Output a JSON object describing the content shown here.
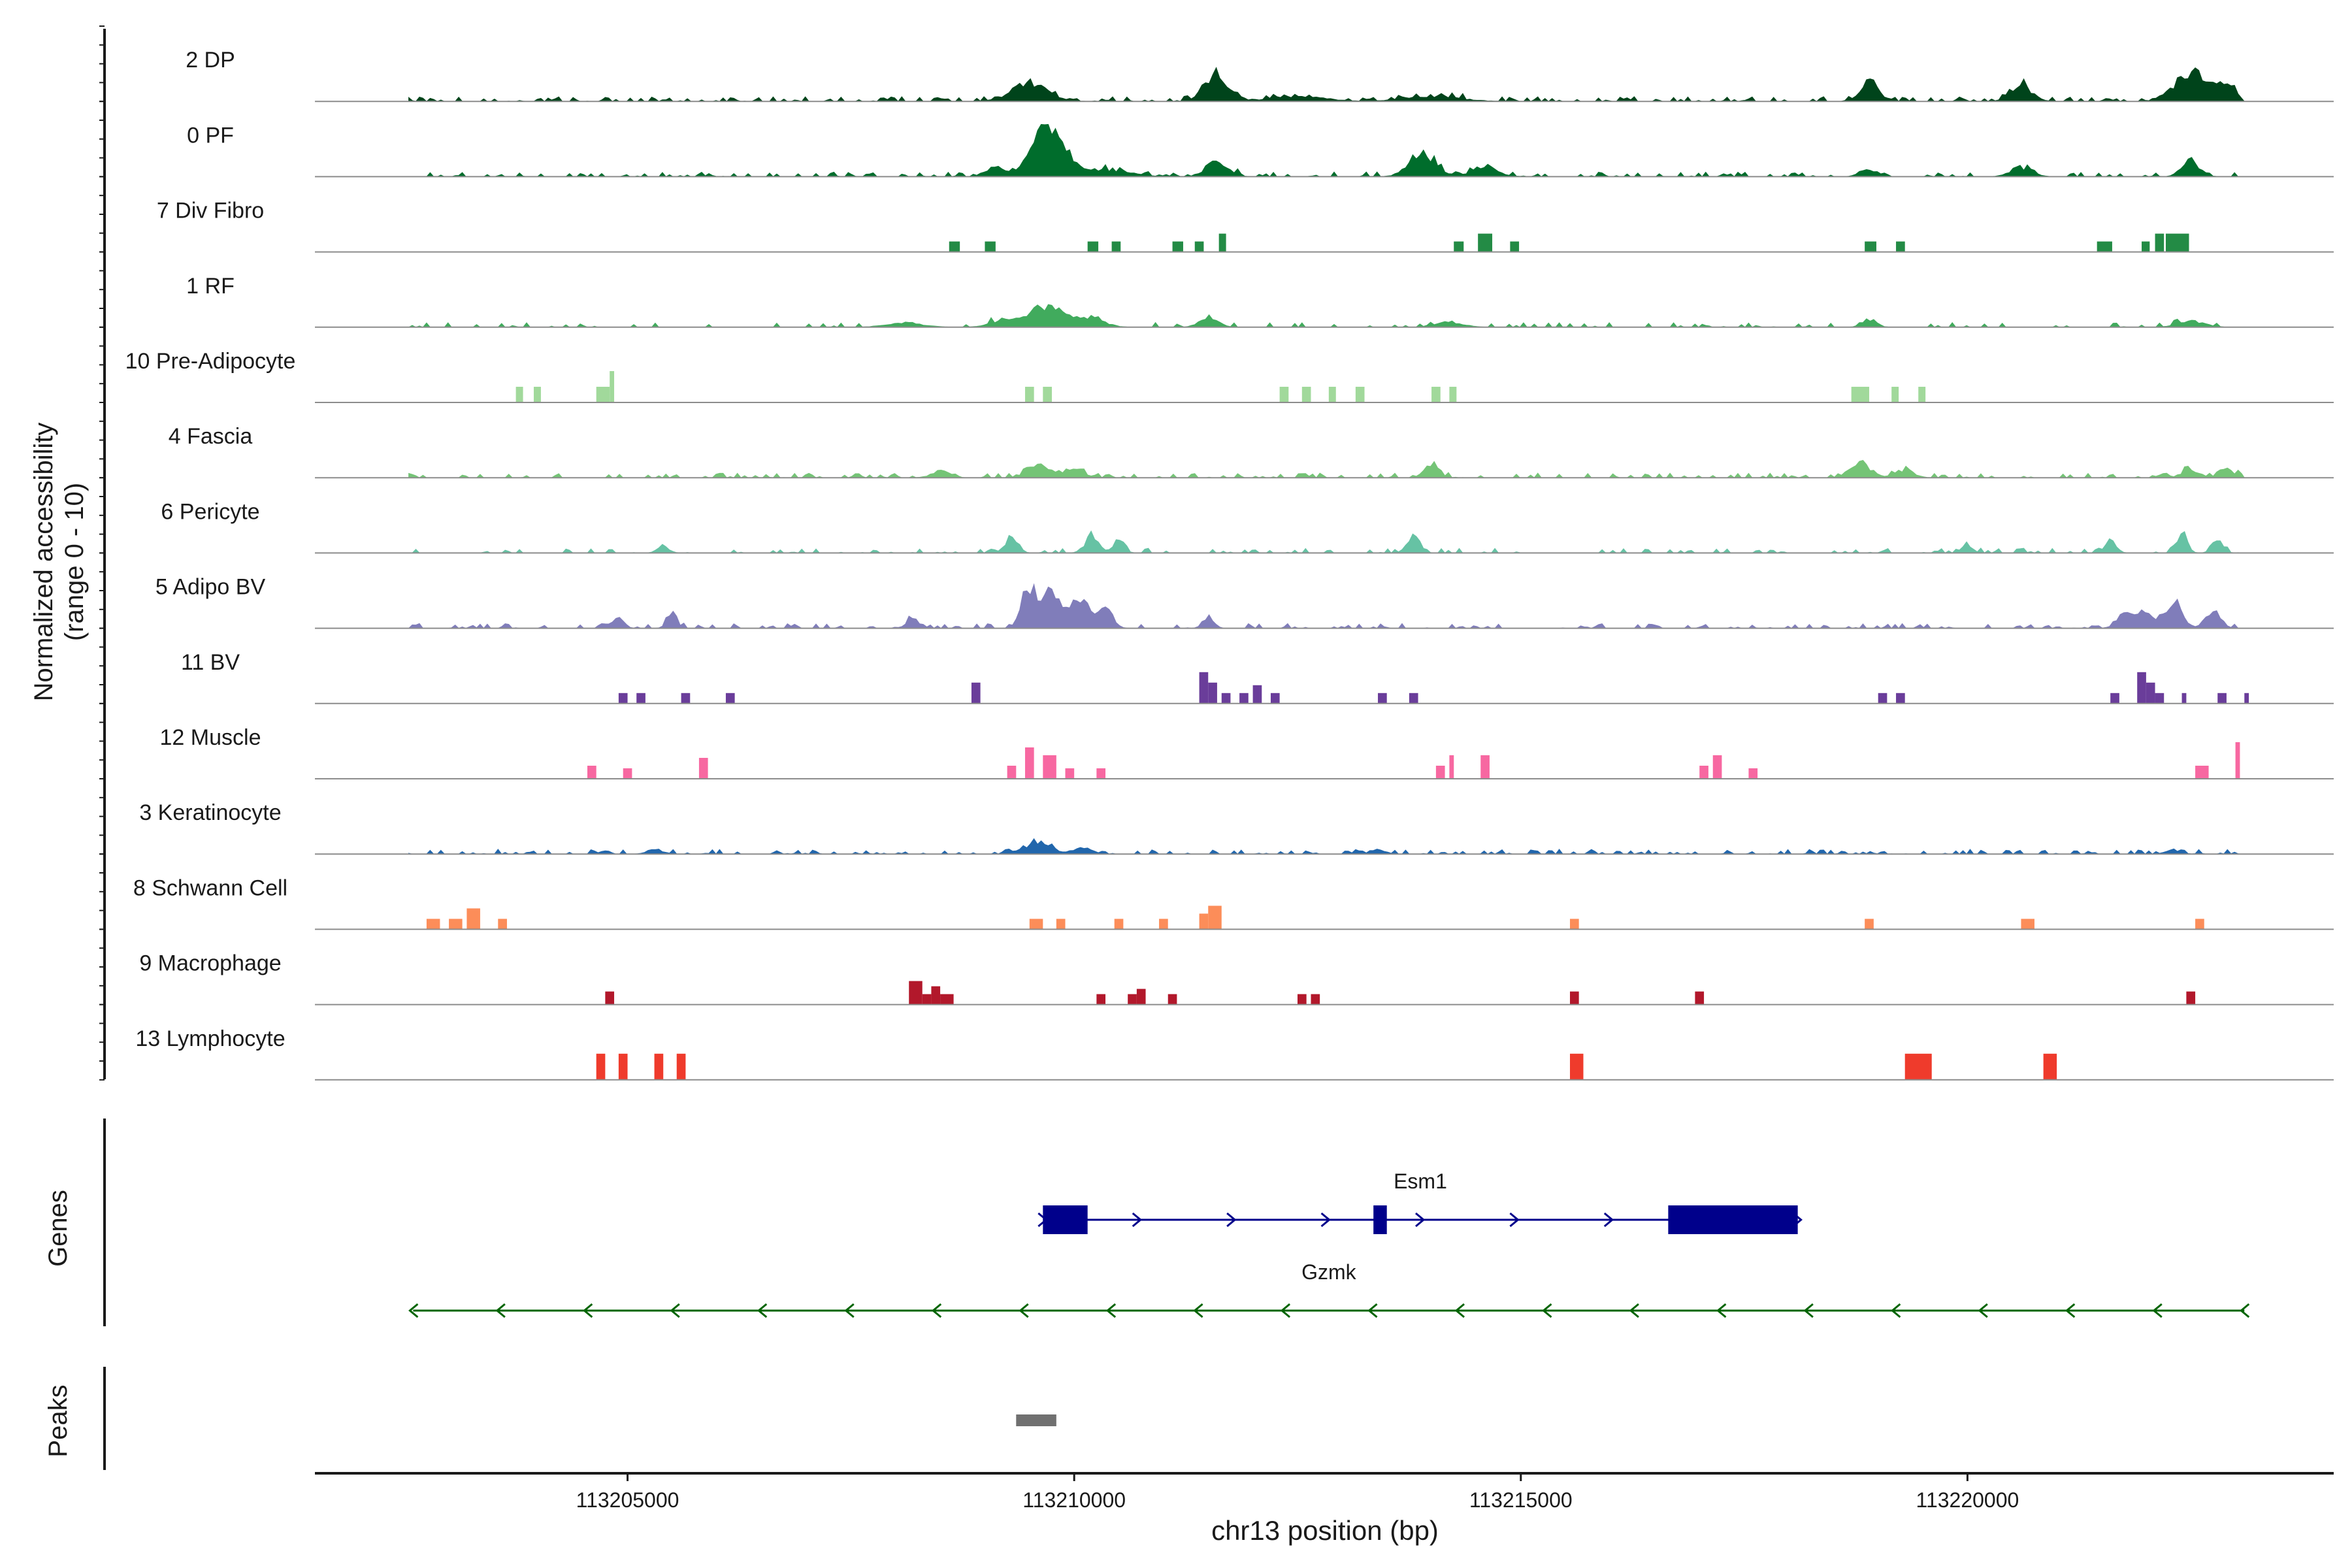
{
  "chart_data": {
    "type": "area",
    "title": "",
    "xlabel": "chr13 position (bp)",
    "ylabel_line1": "Normalized accessibility",
    "ylabel_line2": "(range 0 - 10)",
    "xlim": [
      113201500,
      113224100
    ],
    "ylim": [
      0,
      10
    ],
    "x_ticks": [
      113205000,
      113210000,
      113215000,
      113220000
    ],
    "x_tick_labels": [
      "113205000",
      "113210000",
      "113215000",
      "113220000"
    ],
    "panel_labels": {
      "genes": "Genes",
      "peaks": "Peaks"
    },
    "tracks": [
      {
        "name": "2 DP",
        "color": "#00441b",
        "density": 0.9,
        "peaks": [
          [
            113209500,
            3.5,
            200
          ],
          [
            113211600,
            5.0,
            130
          ],
          [
            113218900,
            3.8,
            100
          ],
          [
            113220600,
            3.0,
            120
          ],
          [
            113222500,
            5.5,
            180
          ],
          [
            113222900,
            3.0,
            100
          ],
          [
            113212500,
            1.0,
            300
          ],
          [
            113214000,
            1.0,
            300
          ]
        ]
      },
      {
        "name": "0 PF",
        "color": "#006d2c",
        "density": 0.8,
        "peaks": [
          [
            113209700,
            10.0,
            180
          ],
          [
            113209100,
            1.8,
            100
          ],
          [
            113211600,
            3.2,
            120
          ],
          [
            113213900,
            4.2,
            150
          ],
          [
            113214600,
            1.5,
            150
          ],
          [
            113218900,
            1.2,
            100
          ],
          [
            113220600,
            1.5,
            120
          ],
          [
            113222500,
            3.0,
            100
          ],
          [
            113210300,
            1.2,
            300
          ]
        ]
      },
      {
        "name": "7 Div Fibro",
        "color": "#238b45",
        "blocks": [
          [
            113208600,
            113208720,
            2
          ],
          [
            113209000,
            113209120,
            2
          ],
          [
            113210150,
            113210270,
            2
          ],
          [
            113210420,
            113210520,
            2
          ],
          [
            113211100,
            113211220,
            2
          ],
          [
            113211350,
            113211450,
            2
          ],
          [
            113211620,
            113211700,
            3.5
          ],
          [
            113214250,
            113214360,
            2
          ],
          [
            113214520,
            113214680,
            3.5
          ],
          [
            113214880,
            113214980,
            2
          ],
          [
            113218850,
            113218980,
            2
          ],
          [
            113219200,
            113219300,
            2
          ],
          [
            113221450,
            113221620,
            2
          ],
          [
            113221950,
            113222040,
            2
          ],
          [
            113222100,
            113222200,
            3.5
          ],
          [
            113222220,
            113222480,
            3.5
          ]
        ]
      },
      {
        "name": "1 RF",
        "color": "#41ab5d",
        "density": 0.5,
        "peaks": [
          [
            113209700,
            4.2,
            200
          ],
          [
            113209200,
            1.2,
            150
          ],
          [
            113210200,
            1.5,
            150
          ],
          [
            113211500,
            2.0,
            100
          ],
          [
            113214200,
            1.0,
            150
          ],
          [
            113218900,
            1.5,
            80
          ],
          [
            113222500,
            1.2,
            150
          ],
          [
            113208100,
            0.8,
            200
          ]
        ]
      },
      {
        "name": "10 Pre-Adipocyte",
        "color": "#a1d99b",
        "blocks": [
          [
            113203750,
            113203830,
            3
          ],
          [
            113203950,
            113204030,
            3
          ],
          [
            113204650,
            113204800,
            3
          ],
          [
            113204800,
            113204850,
            6
          ],
          [
            113209450,
            113209550,
            3
          ],
          [
            113209650,
            113209750,
            3
          ],
          [
            113212300,
            113212400,
            3
          ],
          [
            113212550,
            113212650,
            3
          ],
          [
            113212850,
            113212930,
            3
          ],
          [
            113213150,
            113213250,
            3
          ],
          [
            113214000,
            113214100,
            3
          ],
          [
            113214200,
            113214280,
            3
          ],
          [
            113218700,
            113218900,
            3
          ],
          [
            113219150,
            113219230,
            3
          ],
          [
            113219450,
            113219530,
            3
          ]
        ]
      },
      {
        "name": "4 Fascia",
        "color": "#74c476",
        "density": 0.7,
        "peaks": [
          [
            113209600,
            2.5,
            120
          ],
          [
            113210000,
            1.5,
            120
          ],
          [
            113214000,
            2.2,
            80
          ],
          [
            113218800,
            2.5,
            120
          ],
          [
            113219300,
            1.5,
            100
          ],
          [
            113222500,
            1.5,
            100
          ],
          [
            113222900,
            1.8,
            80
          ],
          [
            113208500,
            1.2,
            100
          ]
        ]
      },
      {
        "name": "6 Pericyte",
        "color": "#66c2a4",
        "density": 0.6,
        "peaks": [
          [
            113209300,
            3.0,
            70
          ],
          [
            113210200,
            3.0,
            80
          ],
          [
            113210500,
            2.5,
            60
          ],
          [
            113213800,
            3.5,
            70
          ],
          [
            113222400,
            3.8,
            60
          ],
          [
            113222800,
            2.2,
            60
          ],
          [
            113221600,
            2.5,
            60
          ],
          [
            113220000,
            1.5,
            60
          ],
          [
            113205400,
            1.5,
            60
          ]
        ]
      },
      {
        "name": "5 Adipo BV",
        "color": "#807dba",
        "density": 0.7,
        "peaks": [
          [
            113209500,
            7.5,
            90
          ],
          [
            113209750,
            6.8,
            90
          ],
          [
            113210050,
            5.5,
            110
          ],
          [
            113210350,
            4.0,
            80
          ],
          [
            113222300,
            4.5,
            100
          ],
          [
            113221800,
            3.0,
            100
          ],
          [
            113222750,
            3.5,
            80
          ],
          [
            113222000,
            2.5,
            80
          ],
          [
            113204900,
            2.0,
            60
          ],
          [
            113205500,
            2.2,
            60
          ],
          [
            113208200,
            1.6,
            80
          ],
          [
            113211500,
            2.2,
            60
          ]
        ]
      },
      {
        "name": "11 BV",
        "color": "#6a3d9a",
        "blocks": [
          [
            113204900,
            113205000,
            2
          ],
          [
            113205100,
            113205200,
            2
          ],
          [
            113205600,
            113205700,
            2
          ],
          [
            113206100,
            113206200,
            2
          ],
          [
            113208850,
            113208950,
            4
          ],
          [
            113211400,
            113211500,
            6
          ],
          [
            113211500,
            113211600,
            4
          ],
          [
            113211650,
            113211750,
            2
          ],
          [
            113211850,
            113211950,
            2
          ],
          [
            113212000,
            113212100,
            3.5
          ],
          [
            113212200,
            113212300,
            2
          ],
          [
            113213400,
            113213500,
            2
          ],
          [
            113213750,
            113213850,
            2
          ],
          [
            113219000,
            113219100,
            2
          ],
          [
            113219200,
            113219300,
            2
          ],
          [
            113221600,
            113221700,
            2
          ],
          [
            113221900,
            113222000,
            6
          ],
          [
            113222000,
            113222100,
            4
          ],
          [
            113222100,
            113222200,
            2
          ],
          [
            113222400,
            113222450,
            2
          ],
          [
            113222800,
            113222900,
            2
          ],
          [
            113223100,
            113223150,
            2
          ]
        ]
      },
      {
        "name": "12 Muscle",
        "color": "#f768a1",
        "blocks": [
          [
            113204550,
            113204650,
            2.5
          ],
          [
            113204950,
            113205050,
            2
          ],
          [
            113205800,
            113205900,
            4
          ],
          [
            113209250,
            113209350,
            2.5
          ],
          [
            113209450,
            113209550,
            6
          ],
          [
            113209650,
            113209800,
            4.5
          ],
          [
            113209900,
            113210000,
            2
          ],
          [
            113210250,
            113210350,
            2
          ],
          [
            113214050,
            113214150,
            2.5
          ],
          [
            113214200,
            113214250,
            4.5
          ],
          [
            113214550,
            113214650,
            4.5
          ],
          [
            113217000,
            113217100,
            2.5
          ],
          [
            113217150,
            113217250,
            4.5
          ],
          [
            113217550,
            113217650,
            2
          ],
          [
            113222550,
            113222700,
            2.5
          ],
          [
            113223000,
            113223050,
            7
          ]
        ]
      },
      {
        "name": "3 Keratinocyte",
        "color": "#2166ac",
        "density": 0.8,
        "peaks": [
          [
            113209600,
            2.0,
            150
          ],
          [
            113210100,
            1.2,
            100
          ],
          [
            113213400,
            1.0,
            80
          ],
          [
            113205300,
            1.0,
            80
          ],
          [
            113222300,
            0.8,
            80
          ]
        ]
      },
      {
        "name": "8 Schwann Cell",
        "color": "#fc8d59",
        "blocks": [
          [
            113202750,
            113202900,
            2
          ],
          [
            113203000,
            113203150,
            2
          ],
          [
            113203200,
            113203350,
            4
          ],
          [
            113203550,
            113203650,
            2
          ],
          [
            113209500,
            113209650,
            2
          ],
          [
            113209800,
            113209900,
            2
          ],
          [
            113210450,
            113210550,
            2
          ],
          [
            113210950,
            113211050,
            2
          ],
          [
            113211400,
            113211500,
            3
          ],
          [
            113211500,
            113211650,
            4.5
          ],
          [
            113215550,
            113215650,
            2
          ],
          [
            113218850,
            113218950,
            2
          ],
          [
            113220600,
            113220750,
            2
          ],
          [
            113222550,
            113222650,
            2
          ]
        ]
      },
      {
        "name": "9 Macrophage",
        "color": "#b2182b",
        "blocks": [
          [
            113204750,
            113204850,
            2.5
          ],
          [
            113208150,
            113208300,
            4.5
          ],
          [
            113208300,
            113208400,
            2
          ],
          [
            113208400,
            113208500,
            3.5
          ],
          [
            113208500,
            113208650,
            2
          ],
          [
            113210250,
            113210350,
            2
          ],
          [
            113210600,
            113210700,
            2
          ],
          [
            113210700,
            113210800,
            3
          ],
          [
            113211050,
            113211150,
            2
          ],
          [
            113212500,
            113212600,
            2
          ],
          [
            113212650,
            113212750,
            2
          ],
          [
            113215550,
            113215650,
            2.5
          ],
          [
            113216950,
            113217050,
            2.5
          ],
          [
            113222450,
            113222550,
            2.5
          ]
        ]
      },
      {
        "name": "13 Lymphocyte",
        "color": "#ef3b2c",
        "blocks": [
          [
            113204650,
            113204750,
            5
          ],
          [
            113204900,
            113205000,
            5
          ],
          [
            113205300,
            113205400,
            5
          ],
          [
            113205550,
            113205650,
            5
          ],
          [
            113215550,
            113215700,
            5
          ],
          [
            113219300,
            113219600,
            5
          ],
          [
            113220850,
            113221000,
            5
          ]
        ]
      }
    ],
    "genes": [
      {
        "name": "Esm1",
        "strand": "+",
        "color": "#00008b",
        "start": 113209650,
        "end": 113218100,
        "exons": [
          [
            113209650,
            113210150
          ],
          [
            113213350,
            113213500
          ],
          [
            113216650,
            113218100
          ]
        ]
      },
      {
        "name": "Gzmk",
        "strand": "-",
        "color": "#006400",
        "start": 113202600,
        "end": 113223100,
        "exons": []
      }
    ],
    "peak_regions": [
      {
        "start": 113209350,
        "end": 113209800,
        "color": "#707070"
      }
    ]
  }
}
